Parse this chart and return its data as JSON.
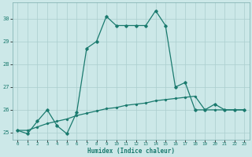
{
  "xlabel": "Humidex (Indice chaleur)",
  "x_values": [
    0,
    1,
    2,
    3,
    4,
    5,
    6,
    7,
    8,
    9,
    10,
    11,
    12,
    13,
    14,
    15,
    16,
    17,
    18,
    19,
    20,
    21,
    22,
    23
  ],
  "line1_y": [
    25.1,
    24.95,
    25.5,
    26.0,
    25.3,
    24.95,
    25.9,
    28.7,
    29.0,
    30.1,
    29.7,
    29.7,
    29.7,
    29.7,
    30.35,
    29.7,
    27.0,
    27.2,
    26.0,
    26.0,
    26.25,
    26.0,
    26.0,
    26.0
  ],
  "line2_y": [
    25.1,
    25.1,
    25.25,
    25.4,
    25.5,
    25.6,
    25.75,
    25.85,
    25.95,
    26.05,
    26.1,
    26.2,
    26.25,
    26.3,
    26.4,
    26.45,
    26.5,
    26.55,
    26.6,
    26.0,
    26.0,
    26.0,
    26.0,
    26.0
  ],
  "line_color": "#1a7a6e",
  "background_color": "#cce8e8",
  "grid_color": "#aacece",
  "ylim": [
    24.7,
    30.7
  ],
  "yticks": [
    25,
    26,
    27,
    28,
    29,
    30
  ],
  "xlim": [
    -0.5,
    23.5
  ]
}
